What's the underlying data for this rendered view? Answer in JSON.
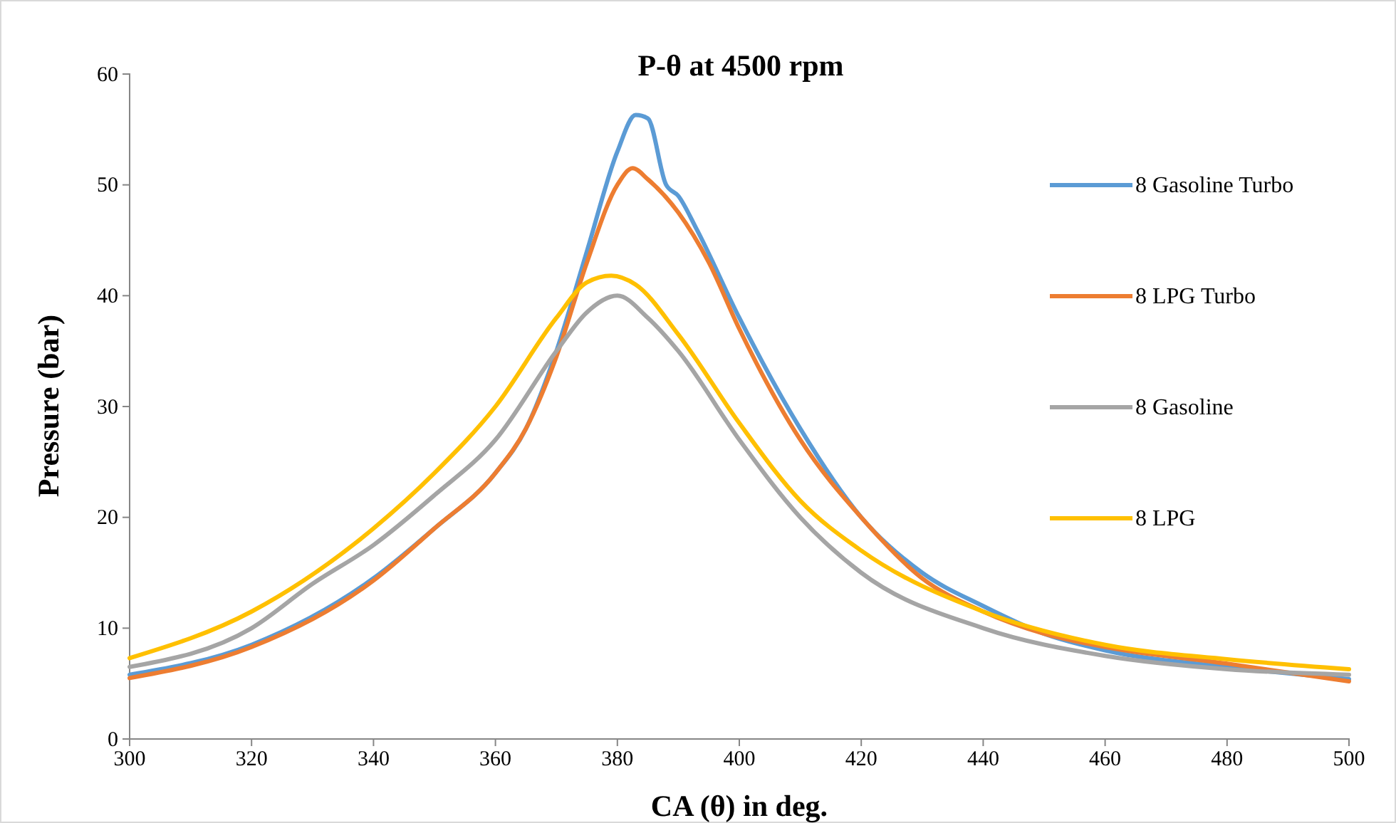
{
  "chart_data": {
    "type": "line",
    "title": "P-θ at 4500 rpm",
    "xlabel": "CA (θ) in deg.",
    "ylabel": "Pressure (bar)",
    "xlim": [
      300,
      500
    ],
    "ylim": [
      0,
      60
    ],
    "xticks": [
      300,
      320,
      340,
      360,
      380,
      400,
      420,
      440,
      460,
      480,
      500
    ],
    "yticks": [
      0,
      10,
      20,
      30,
      40,
      50,
      60
    ],
    "grid": false,
    "legend": "right",
    "marker": "none",
    "line_style": "solid",
    "series": [
      {
        "name": "8 Gasoline Turbo",
        "color": "#5b9bd5",
        "x": [
          300,
          320,
          340,
          350,
          360,
          365,
          370,
          375,
          380,
          383,
          385,
          388,
          390,
          393,
          400,
          410,
          420,
          430,
          440,
          450,
          460,
          480,
          500
        ],
        "values": [
          5.8,
          8.5,
          14.5,
          19,
          24,
          28,
          35,
          44,
          53,
          56.3,
          56,
          50,
          49,
          46,
          38,
          28,
          20,
          15,
          12,
          9.5,
          8,
          6.5,
          5.4
        ]
      },
      {
        "name": "8 LPG Turbo",
        "color": "#ed7d31",
        "x": [
          300,
          320,
          340,
          350,
          360,
          365,
          370,
          375,
          380,
          382.5,
          385,
          390,
          395,
          400,
          410,
          420,
          430,
          440,
          450,
          460,
          480,
          500
        ],
        "values": [
          5.5,
          8.3,
          14.3,
          19,
          24,
          28,
          34.5,
          43,
          50,
          51.5,
          50.5,
          47.5,
          43,
          37,
          27,
          20,
          14.5,
          11.5,
          9.5,
          8.3,
          6.8,
          5.2
        ]
      },
      {
        "name": "8 Gasoline",
        "color": "#a5a5a5",
        "x": [
          300,
          320,
          330,
          340,
          350,
          360,
          370,
          375,
          380,
          385,
          390,
          400,
          410,
          420,
          440,
          460,
          480,
          500
        ],
        "values": [
          6.5,
          10,
          14,
          17.5,
          22,
          27,
          35,
          38.5,
          40,
          38,
          35,
          27,
          20,
          15,
          10,
          7.5,
          6.3,
          5.8
        ]
      },
      {
        "name": "8 LPG",
        "color": "#ffc000",
        "x": [
          300,
          320,
          340,
          350,
          360,
          370,
          375,
          379,
          383,
          390,
          400,
          410,
          420,
          440,
          460,
          480,
          500
        ],
        "values": [
          7.3,
          11.5,
          19,
          24,
          30,
          38,
          41.2,
          41.8,
          41,
          36.5,
          28.5,
          21.5,
          17,
          11.5,
          8.5,
          7.2,
          6.3
        ]
      }
    ]
  }
}
